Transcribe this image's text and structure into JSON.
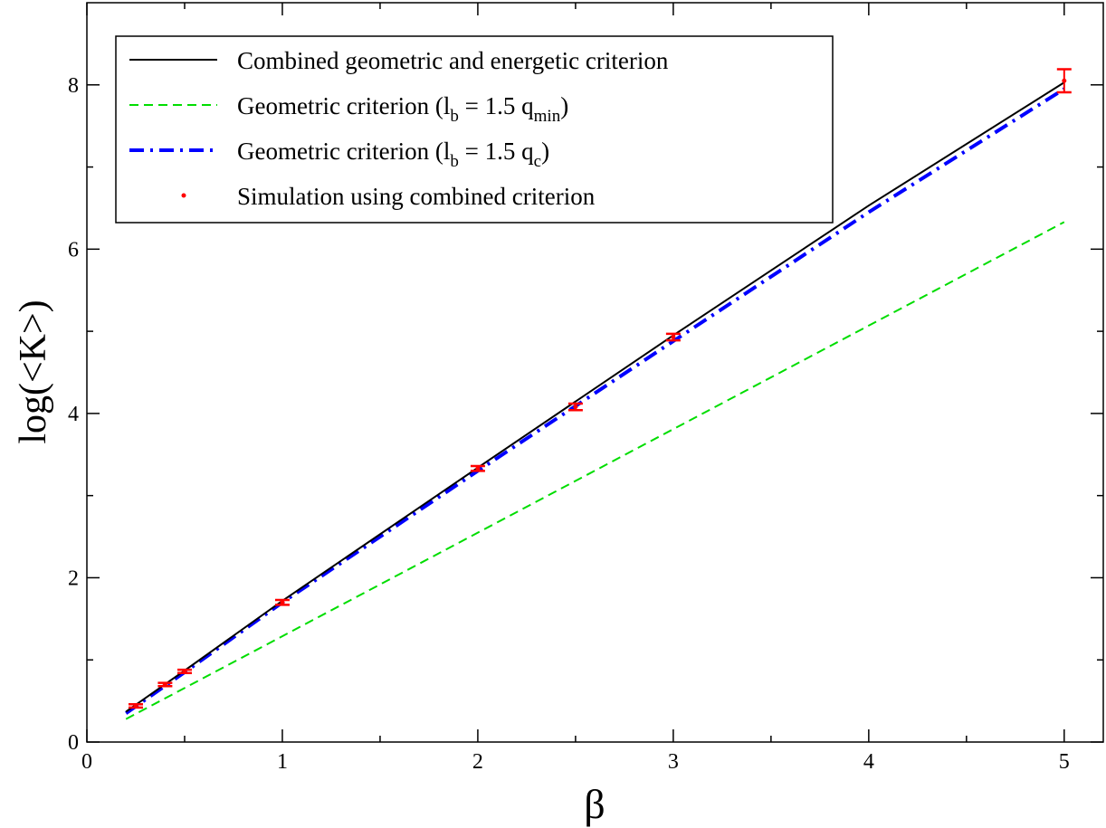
{
  "chart_data": {
    "type": "line",
    "xlabel": "β",
    "ylabel": "log(<K>)",
    "xlim": [
      0,
      5.2
    ],
    "ylim": [
      0,
      9
    ],
    "xticks": [
      0,
      1,
      2,
      3,
      4,
      5
    ],
    "yticks": [
      0,
      2,
      4,
      6,
      8
    ],
    "grid": false,
    "legend_position": "top-left",
    "series": [
      {
        "name": "Combined geometric and energetic criterion",
        "style": "solid",
        "color": "#000000",
        "x": [
          0.2,
          0.5,
          1.0,
          2.0,
          3.0,
          4.0,
          5.0
        ],
        "y": [
          0.37,
          0.87,
          1.72,
          3.34,
          4.95,
          6.53,
          8.03
        ]
      },
      {
        "name": "Geometric criterion (l_b = 1.5 q_min)",
        "legend_parts": [
          "Geometric criterion (l",
          "b",
          " = 1.5 q",
          "min",
          ")"
        ],
        "style": "dashed",
        "color": "#00dd00",
        "x": [
          0.2,
          5.0
        ],
        "y": [
          0.28,
          6.33
        ]
      },
      {
        "name": "Geometric criterion (l_b = 1.5 q_c)",
        "legend_parts": [
          "Geometric criterion (l",
          "b",
          " = 1.5 q",
          "c",
          ")"
        ],
        "style": "dashdot",
        "color": "#0000ff",
        "x": [
          0.2,
          0.5,
          1.0,
          2.0,
          3.0,
          4.0,
          5.0
        ],
        "y": [
          0.35,
          0.85,
          1.7,
          3.3,
          4.88,
          6.45,
          7.95
        ]
      },
      {
        "name": "Simulation using combined criterion",
        "style": "points",
        "color": "#ff0000",
        "x": [
          0.25,
          0.4,
          0.5,
          1.0,
          2.0,
          2.5,
          3.0,
          5.0
        ],
        "y": [
          0.44,
          0.7,
          0.86,
          1.7,
          3.33,
          4.08,
          4.93,
          8.05
        ],
        "err": [
          0.02,
          0.02,
          0.02,
          0.03,
          0.03,
          0.04,
          0.04,
          0.14
        ]
      }
    ]
  }
}
